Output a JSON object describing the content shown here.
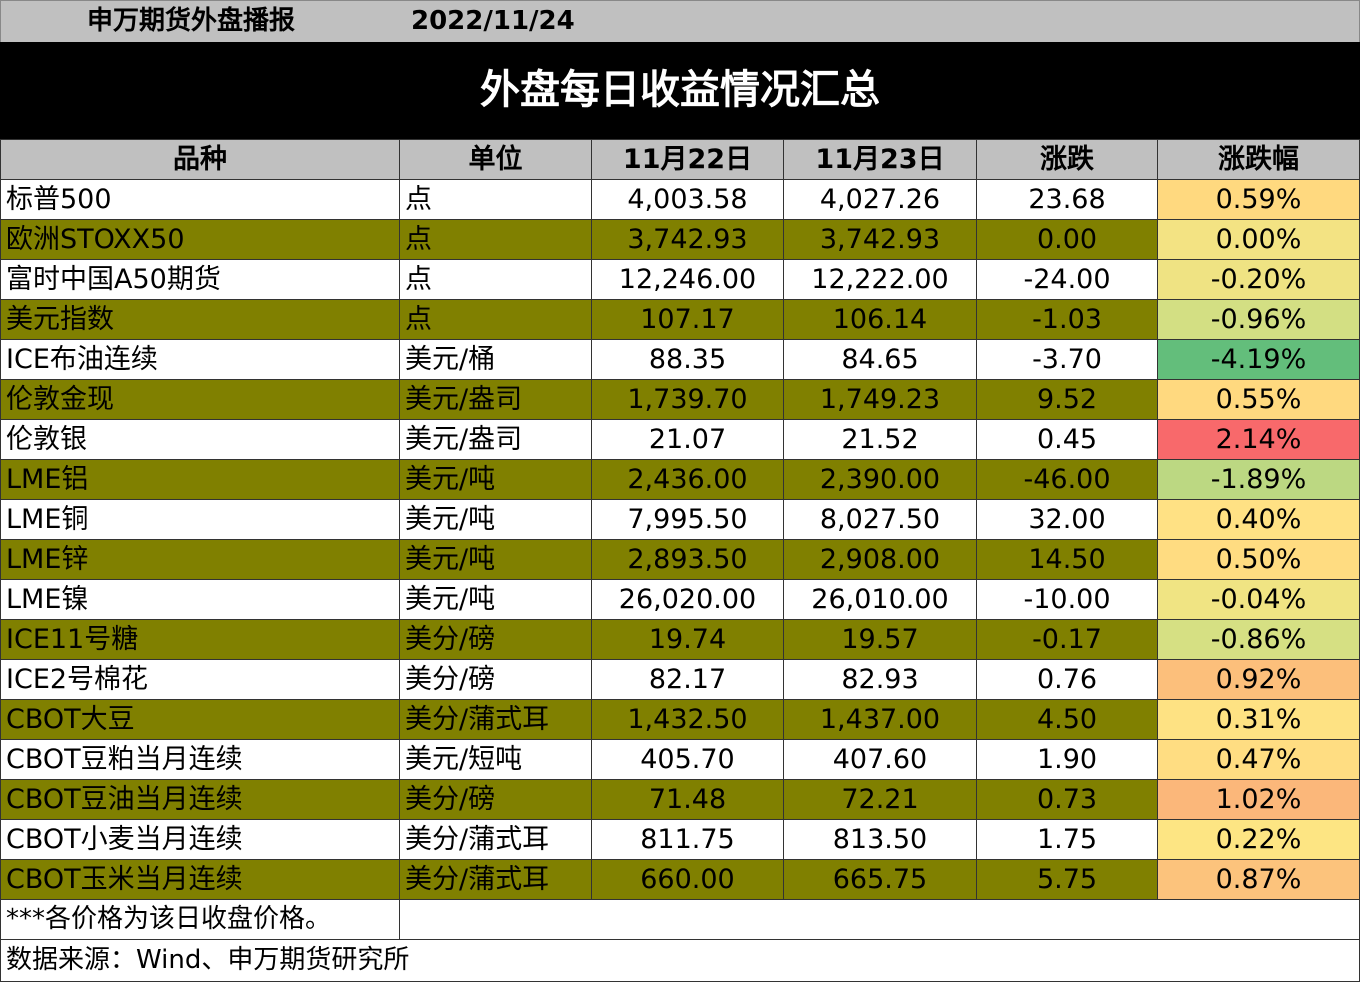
{
  "header": {
    "brand": "申万期货外盘播报",
    "date": "2022/11/24"
  },
  "title": "外盘每日收益情况汇总",
  "columns": [
    "品种",
    "单位",
    "11月22日",
    "11月23日",
    "涨跌",
    "涨跌幅"
  ],
  "rows": [
    {
      "name": "标普500",
      "unit": "点",
      "d1": "4,003.58",
      "d2": "4,027.26",
      "chg": "23.68",
      "pct": "0.59%",
      "color": "#ffd97f"
    },
    {
      "name": "欧洲STOXX50",
      "unit": "点",
      "d1": "3,742.93",
      "d2": "3,742.93",
      "chg": "0.00",
      "pct": "0.00%",
      "color": "#f3e383"
    },
    {
      "name": "富时中国A50期货",
      "unit": "点",
      "d1": "12,246.00",
      "d2": "12,222.00",
      "chg": "-24.00",
      "pct": "-0.20%",
      "color": "#efe383"
    },
    {
      "name": "美元指数",
      "unit": "点",
      "d1": "107.17",
      "d2": "106.14",
      "chg": "-1.03",
      "pct": "-0.96%",
      "color": "#d3df83"
    },
    {
      "name": "ICE布油连续",
      "unit": "美元/桶",
      "d1": "88.35",
      "d2": "84.65",
      "chg": "-3.70",
      "pct": "-4.19%",
      "color": "#63be7b"
    },
    {
      "name": "伦敦金现",
      "unit": "美元/盎司",
      "d1": "1,739.70",
      "d2": "1,749.23",
      "chg": "9.52",
      "pct": "0.55%",
      "color": "#ffd97f"
    },
    {
      "name": "伦敦银",
      "unit": "美元/盎司",
      "d1": "21.07",
      "d2": "21.52",
      "chg": "0.45",
      "pct": "2.14%",
      "color": "#f8696b"
    },
    {
      "name": "LME铝",
      "unit": "美元/吨",
      "d1": "2,436.00",
      "d2": "2,390.00",
      "chg": "-46.00",
      "pct": "-1.89%",
      "color": "#bcd882"
    },
    {
      "name": "LME铜",
      "unit": "美元/吨",
      "d1": "7,995.50",
      "d2": "8,027.50",
      "chg": "32.00",
      "pct": "0.40%",
      "color": "#ffe184"
    },
    {
      "name": "LME锌",
      "unit": "美元/吨",
      "d1": "2,893.50",
      "d2": "2,908.00",
      "chg": "14.50",
      "pct": "0.50%",
      "color": "#ffdc81"
    },
    {
      "name": "LME镍",
      "unit": "美元/吨",
      "d1": "26,020.00",
      "d2": "26,010.00",
      "chg": "-10.00",
      "pct": "-0.04%",
      "color": "#f0e483"
    },
    {
      "name": "ICE11号糖",
      "unit": "美分/磅",
      "d1": "19.74",
      "d2": "19.57",
      "chg": "-0.17",
      "pct": "-0.86%",
      "color": "#d6e083"
    },
    {
      "name": "ICE2号棉花",
      "unit": "美分/磅",
      "d1": "82.17",
      "d2": "82.93",
      "chg": "0.76",
      "pct": "0.92%",
      "color": "#fcbf7b"
    },
    {
      "name": "CBOT大豆",
      "unit": "美分/蒲式耳",
      "d1": "1,432.50",
      "d2": "1,437.00",
      "chg": "4.50",
      "pct": "0.31%",
      "color": "#fee283"
    },
    {
      "name": "CBOT豆粕当月连续",
      "unit": "美元/短吨",
      "d1": "405.70",
      "d2": "407.60",
      "chg": "1.90",
      "pct": "0.47%",
      "color": "#ffdd82"
    },
    {
      "name": "CBOT豆油当月连续",
      "unit": "美分/磅",
      "d1": "71.48",
      "d2": "72.21",
      "chg": "0.73",
      "pct": "1.02%",
      "color": "#fbb77a"
    },
    {
      "name": "CBOT小麦当月连续",
      "unit": "美分/蒲式耳",
      "d1": "811.75",
      "d2": "813.50",
      "chg": "1.75",
      "pct": "0.22%",
      "color": "#fde583"
    },
    {
      "name": "CBOT玉米当月连续",
      "unit": "美分/蒲式耳",
      "d1": "660.00",
      "d2": "665.75",
      "chg": "5.75",
      "pct": "0.87%",
      "color": "#fcc37c"
    }
  ],
  "note": "***各价格为该日收盘价格。",
  "source": "数据来源：Wind、申万期货研究所",
  "colors": {
    "olive": "#808000",
    "header_gray": "#c0c0c0"
  }
}
